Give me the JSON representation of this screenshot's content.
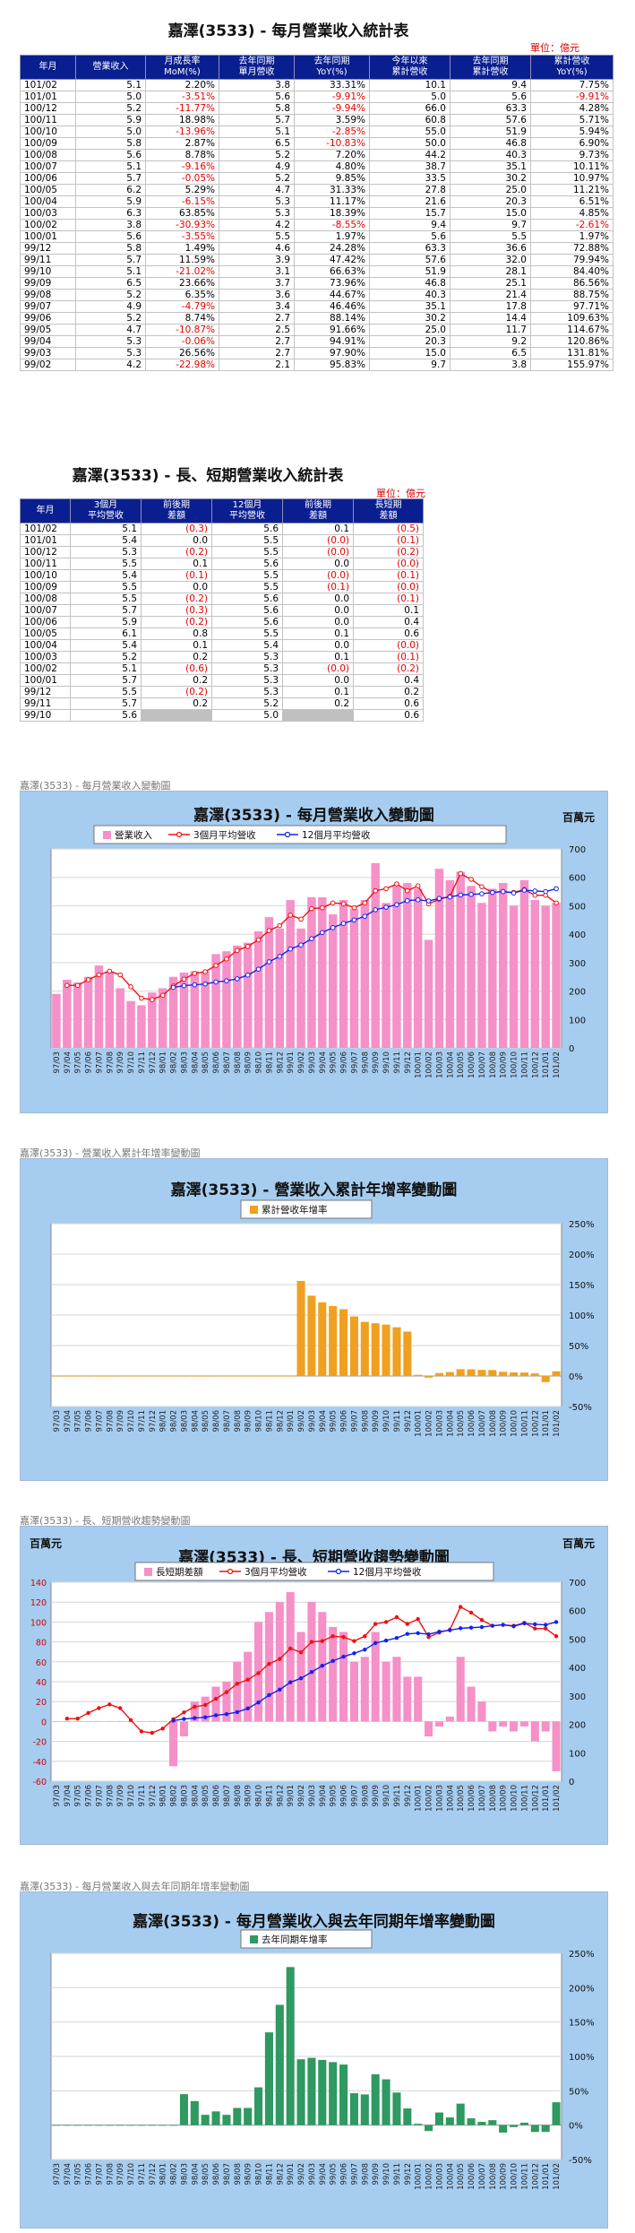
{
  "table1": {
    "title": "嘉澤(3533) - 每月營業收入統計表",
    "unit": "單位：億元",
    "headers": [
      "年月",
      "營業收入",
      "月成長率\nMoM(%)",
      "去年同期\n單月營收",
      "去年同期\nYoY(%)",
      "今年以來\n累計營收",
      "去年同期\n累計營收",
      "累計營收\nYoY(%)"
    ],
    "rows": [
      [
        "101/02",
        "5.1",
        "2.20%",
        "3.8",
        "33.31%",
        "10.1",
        "9.4",
        "7.75%"
      ],
      [
        "101/01",
        "5.0",
        "-3.51%",
        "5.6",
        "-9.91%",
        "5.0",
        "5.6",
        "-9.91%"
      ],
      [
        "100/12",
        "5.2",
        "-11.77%",
        "5.8",
        "-9.94%",
        "66.0",
        "63.3",
        "4.28%"
      ],
      [
        "100/11",
        "5.9",
        "18.98%",
        "5.7",
        "3.59%",
        "60.8",
        "57.6",
        "5.71%"
      ],
      [
        "100/10",
        "5.0",
        "-13.96%",
        "5.1",
        "-2.85%",
        "55.0",
        "51.9",
        "5.94%"
      ],
      [
        "100/09",
        "5.8",
        "2.87%",
        "6.5",
        "-10.83%",
        "50.0",
        "46.8",
        "6.90%"
      ],
      [
        "100/08",
        "5.6",
        "8.78%",
        "5.2",
        "7.20%",
        "44.2",
        "40.3",
        "9.73%"
      ],
      [
        "100/07",
        "5.1",
        "-9.16%",
        "4.9",
        "4.80%",
        "38.7",
        "35.1",
        "10.11%"
      ],
      [
        "100/06",
        "5.7",
        "-0.05%",
        "5.2",
        "9.85%",
        "33.5",
        "30.2",
        "10.97%"
      ],
      [
        "100/05",
        "6.2",
        "5.29%",
        "4.7",
        "31.33%",
        "27.8",
        "25.0",
        "11.21%"
      ],
      [
        "100/04",
        "5.9",
        "-6.15%",
        "5.3",
        "11.17%",
        "21.6",
        "20.3",
        "6.51%"
      ],
      [
        "100/03",
        "6.3",
        "63.85%",
        "5.3",
        "18.39%",
        "15.7",
        "15.0",
        "4.85%"
      ],
      [
        "100/02",
        "3.8",
        "-30.93%",
        "4.2",
        "-8.55%",
        "9.4",
        "9.7",
        "-2.61%"
      ],
      [
        "100/01",
        "5.6",
        "-3.55%",
        "5.5",
        "1.97%",
        "5.6",
        "5.5",
        "1.97%"
      ],
      [
        "99/12",
        "5.8",
        "1.49%",
        "4.6",
        "24.28%",
        "63.3",
        "36.6",
        "72.88%"
      ],
      [
        "99/11",
        "5.7",
        "11.59%",
        "3.9",
        "47.42%",
        "57.6",
        "32.0",
        "79.94%"
      ],
      [
        "99/10",
        "5.1",
        "-21.02%",
        "3.1",
        "66.63%",
        "51.9",
        "28.1",
        "84.40%"
      ],
      [
        "99/09",
        "6.5",
        "23.66%",
        "3.7",
        "73.96%",
        "46.8",
        "25.1",
        "86.56%"
      ],
      [
        "99/08",
        "5.2",
        "6.35%",
        "3.6",
        "44.67%",
        "40.3",
        "21.4",
        "88.75%"
      ],
      [
        "99/07",
        "4.9",
        "-4.79%",
        "3.4",
        "46.46%",
        "35.1",
        "17.8",
        "97.71%"
      ],
      [
        "99/06",
        "5.2",
        "8.74%",
        "2.7",
        "88.14%",
        "30.2",
        "14.4",
        "109.63%"
      ],
      [
        "99/05",
        "4.7",
        "-10.87%",
        "2.5",
        "91.66%",
        "25.0",
        "11.7",
        "114.67%"
      ],
      [
        "99/04",
        "5.3",
        "-0.06%",
        "2.7",
        "94.91%",
        "20.3",
        "9.2",
        "120.86%"
      ],
      [
        "99/03",
        "5.3",
        "26.56%",
        "2.7",
        "97.90%",
        "15.0",
        "6.5",
        "131.81%"
      ],
      [
        "99/02",
        "4.2",
        "-22.98%",
        "2.1",
        "95.83%",
        "9.7",
        "3.8",
        "155.97%"
      ]
    ]
  },
  "table2": {
    "title": "嘉澤(3533) - 長、短期營業收入統計表",
    "unit": "單位：億元",
    "headers": [
      "年月",
      "3個月\n平均營收",
      "前後期\n差額",
      "12個月\n平均營收",
      "前後期\n差額",
      "長短期\n差額"
    ],
    "rows": [
      [
        "101/02",
        "5.1",
        "(0.3)",
        "5.6",
        "0.1",
        "(0.5)"
      ],
      [
        "101/01",
        "5.4",
        "0.0",
        "5.5",
        "(0.0)",
        "(0.1)"
      ],
      [
        "100/12",
        "5.3",
        "(0.2)",
        "5.5",
        "(0.0)",
        "(0.2)"
      ],
      [
        "100/11",
        "5.5",
        "0.1",
        "5.6",
        "0.0",
        "(0.0)"
      ],
      [
        "100/10",
        "5.4",
        "(0.1)",
        "5.5",
        "(0.0)",
        "(0.1)"
      ],
      [
        "100/09",
        "5.5",
        "0.0",
        "5.5",
        "(0.1)",
        "(0.0)"
      ],
      [
        "100/08",
        "5.5",
        "(0.2)",
        "5.6",
        "0.0",
        "(0.1)"
      ],
      [
        "100/07",
        "5.7",
        "(0.3)",
        "5.6",
        "0.0",
        "0.1"
      ],
      [
        "100/06",
        "5.9",
        "(0.2)",
        "5.6",
        "0.0",
        "0.4"
      ],
      [
        "100/05",
        "6.1",
        "0.8",
        "5.5",
        "0.1",
        "0.6"
      ],
      [
        "100/04",
        "5.4",
        "0.1",
        "5.4",
        "0.0",
        "(0.0)"
      ],
      [
        "100/03",
        "5.2",
        "0.2",
        "5.3",
        "0.1",
        "(0.1)"
      ],
      [
        "100/02",
        "5.1",
        "(0.6)",
        "5.3",
        "(0.0)",
        "(0.2)"
      ],
      [
        "100/01",
        "5.7",
        "0.2",
        "5.3",
        "0.0",
        "0.4"
      ],
      [
        "99/12",
        "5.5",
        "(0.2)",
        "5.3",
        "0.1",
        "0.2"
      ],
      [
        "99/11",
        "5.7",
        "0.2",
        "5.2",
        "0.2",
        "0.6"
      ],
      [
        "99/10",
        "5.6",
        "",
        "5.0",
        "",
        "0.6"
      ]
    ]
  },
  "captions": {
    "c1": "嘉澤(3533) - 每月營業收入變動圖",
    "c2": "嘉澤(3533) -  營業收入累計年增率變動圖",
    "c3": "嘉澤(3533) -  長、短期營收趨勢變動圖",
    "c4": "嘉澤(3533) -  每月營業收入與去年同期年增率變動圖"
  },
  "colors": {
    "header_bg": "#0a1f8f",
    "panel_bg": "#a6cdf0",
    "bar_pink": "#f590c8",
    "line_red": "#ee1111",
    "line_blue": "#1122ee",
    "bar_orange": "#f0a020",
    "bar_green": "#2e9960",
    "negative_text": "#e60000"
  },
  "months": [
    "97/03",
    "97/04",
    "97/05",
    "97/06",
    "97/07",
    "97/08",
    "97/09",
    "97/10",
    "97/11",
    "97/12",
    "98/01",
    "98/02",
    "98/03",
    "98/04",
    "98/05",
    "98/06",
    "98/07",
    "98/08",
    "98/09",
    "98/10",
    "98/11",
    "98/12",
    "99/01",
    "99/02",
    "99/03",
    "99/04",
    "99/05",
    "99/06",
    "99/07",
    "99/08",
    "99/09",
    "99/10",
    "99/11",
    "99/12",
    "100/01",
    "100/02",
    "100/03",
    "100/04",
    "100/05",
    "100/06",
    "100/07",
    "100/08",
    "100/09",
    "100/10",
    "100/11",
    "100/12",
    "101/01",
    "101/02"
  ],
  "chart_data": [
    {
      "type": "bar",
      "title": "嘉澤(3533) - 每月營業收入變動圖",
      "unit_label": "百萬元",
      "ylim": [
        0,
        700
      ],
      "yticks": [
        0,
        100,
        200,
        300,
        400,
        500,
        600,
        700
      ],
      "series": [
        {
          "name": "營業收入",
          "kind": "bar",
          "values": [
            190,
            240,
            230,
            250,
            290,
            270,
            210,
            165,
            150,
            195,
            210,
            250,
            265,
            270,
            270,
            330,
            340,
            360,
            370,
            410,
            460,
            420,
            520,
            420,
            530,
            530,
            470,
            520,
            490,
            520,
            650,
            510,
            570,
            580,
            560,
            380,
            630,
            590,
            620,
            570,
            510,
            560,
            580,
            500,
            590,
            520,
            500,
            510
          ]
        },
        {
          "name": "3個月平均營收",
          "kind": "line",
          "values": [
            null,
            220,
            220,
            240,
            257,
            270,
            257,
            215,
            175,
            170,
            185,
            218,
            242,
            262,
            268,
            290,
            313,
            343,
            357,
            380,
            413,
            430,
            467,
            453,
            490,
            493,
            510,
            507,
            493,
            510,
            553,
            560,
            577,
            553,
            570,
            507,
            523,
            533,
            613,
            593,
            567,
            547,
            550,
            547,
            557,
            537,
            537,
            510
          ]
        },
        {
          "name": "12個月平均營收",
          "kind": "line",
          "values": [
            null,
            null,
            null,
            null,
            null,
            null,
            null,
            null,
            null,
            null,
            null,
            213,
            219,
            222,
            225,
            232,
            236,
            243,
            256,
            277,
            303,
            322,
            348,
            362,
            384,
            406,
            423,
            438,
            450,
            463,
            486,
            495,
            504,
            518,
            521,
            517,
            526,
            531,
            538,
            540,
            542,
            547,
            550,
            545,
            555,
            552,
            550,
            560
          ]
        }
      ]
    },
    {
      "type": "bar",
      "title": "嘉澤(3533) -  營業收入累計年增率變動圖",
      "ylim": [
        -50,
        250
      ],
      "yticks": [
        "-50%",
        "0%",
        "50%",
        "100%",
        "150%",
        "200%",
        "250%"
      ],
      "series": [
        {
          "name": "累計營收年增率",
          "values": [
            0,
            0,
            0,
            0,
            0,
            0,
            0,
            0,
            0,
            0,
            0,
            0,
            0,
            0,
            0,
            0,
            0,
            0,
            0,
            0,
            0,
            0,
            0,
            155.97,
            131.81,
            120.86,
            114.67,
            109.63,
            97.71,
            88.75,
            86.56,
            84.4,
            79.94,
            72.88,
            1.97,
            -2.61,
            4.85,
            6.51,
            11.21,
            10.97,
            10.11,
            9.73,
            6.9,
            5.94,
            5.71,
            4.28,
            -9.91,
            7.75
          ]
        }
      ]
    },
    {
      "type": "bar",
      "title": "嘉澤(3533) -  長、短期營收趨勢變動圖",
      "unit_label": "百萬元",
      "ylim_left": [
        -60,
        140
      ],
      "yticks_left": [
        -60,
        -40,
        -20,
        0,
        20,
        40,
        60,
        80,
        100,
        120,
        140
      ],
      "ylim_right": [
        0,
        700
      ],
      "yticks_right": [
        0,
        100,
        200,
        300,
        400,
        500,
        600,
        700
      ],
      "series": [
        {
          "name": "長短期差額",
          "kind": "bar",
          "axis": "left",
          "values": [
            0,
            0,
            0,
            0,
            0,
            0,
            0,
            0,
            0,
            0,
            0,
            -45,
            -15,
            20,
            25,
            35,
            40,
            60,
            70,
            100,
            110,
            120,
            130,
            90,
            120,
            110,
            95,
            90,
            60,
            65,
            90,
            60,
            65,
            45,
            45,
            -15,
            -5,
            5,
            65,
            35,
            20,
            -10,
            -5,
            -10,
            -5,
            -20,
            -10,
            -50
          ]
        },
        {
          "name": "3個月平均營收",
          "kind": "line",
          "axis": "right",
          "values": [
            null,
            220,
            220,
            240,
            257,
            270,
            257,
            215,
            175,
            170,
            185,
            218,
            242,
            262,
            268,
            290,
            313,
            343,
            357,
            380,
            413,
            430,
            467,
            453,
            490,
            493,
            510,
            507,
            493,
            510,
            553,
            560,
            577,
            553,
            570,
            507,
            523,
            533,
            613,
            593,
            567,
            547,
            550,
            547,
            557,
            537,
            537,
            510
          ]
        },
        {
          "name": "12個月平均營收",
          "kind": "line",
          "axis": "right",
          "values": [
            null,
            null,
            null,
            null,
            null,
            null,
            null,
            null,
            null,
            null,
            null,
            213,
            219,
            222,
            225,
            232,
            236,
            243,
            256,
            277,
            303,
            322,
            348,
            362,
            384,
            406,
            423,
            438,
            450,
            463,
            486,
            495,
            504,
            518,
            521,
            517,
            526,
            531,
            538,
            540,
            542,
            547,
            550,
            545,
            555,
            552,
            550,
            560
          ]
        }
      ]
    },
    {
      "type": "bar",
      "title": "嘉澤(3533) -  每月營業收入與去年同期年增率變動圖",
      "ylim": [
        -50,
        250
      ],
      "yticks": [
        "-50%",
        "0%",
        "50%",
        "100%",
        "150%",
        "200%",
        "250%"
      ],
      "series": [
        {
          "name": "去年同期年增率",
          "values": [
            0,
            0,
            0,
            0,
            0,
            0,
            0,
            0,
            0,
            0,
            0,
            0,
            45,
            35,
            15,
            20,
            15,
            25,
            25,
            55,
            135,
            175,
            230,
            95.83,
            97.9,
            94.91,
            91.66,
            88.14,
            46.46,
            44.67,
            73.96,
            66.63,
            47.42,
            24.28,
            1.97,
            -8.55,
            18.39,
            11.17,
            31.33,
            9.85,
            4.8,
            7.2,
            -10.83,
            -2.85,
            3.59,
            -9.94,
            -9.91,
            33.31
          ]
        }
      ]
    }
  ],
  "axis_labels": {
    "pct_ticks": [
      "-50%",
      "0%",
      "50%",
      "100%",
      "150%",
      "200%",
      "250%"
    ]
  }
}
